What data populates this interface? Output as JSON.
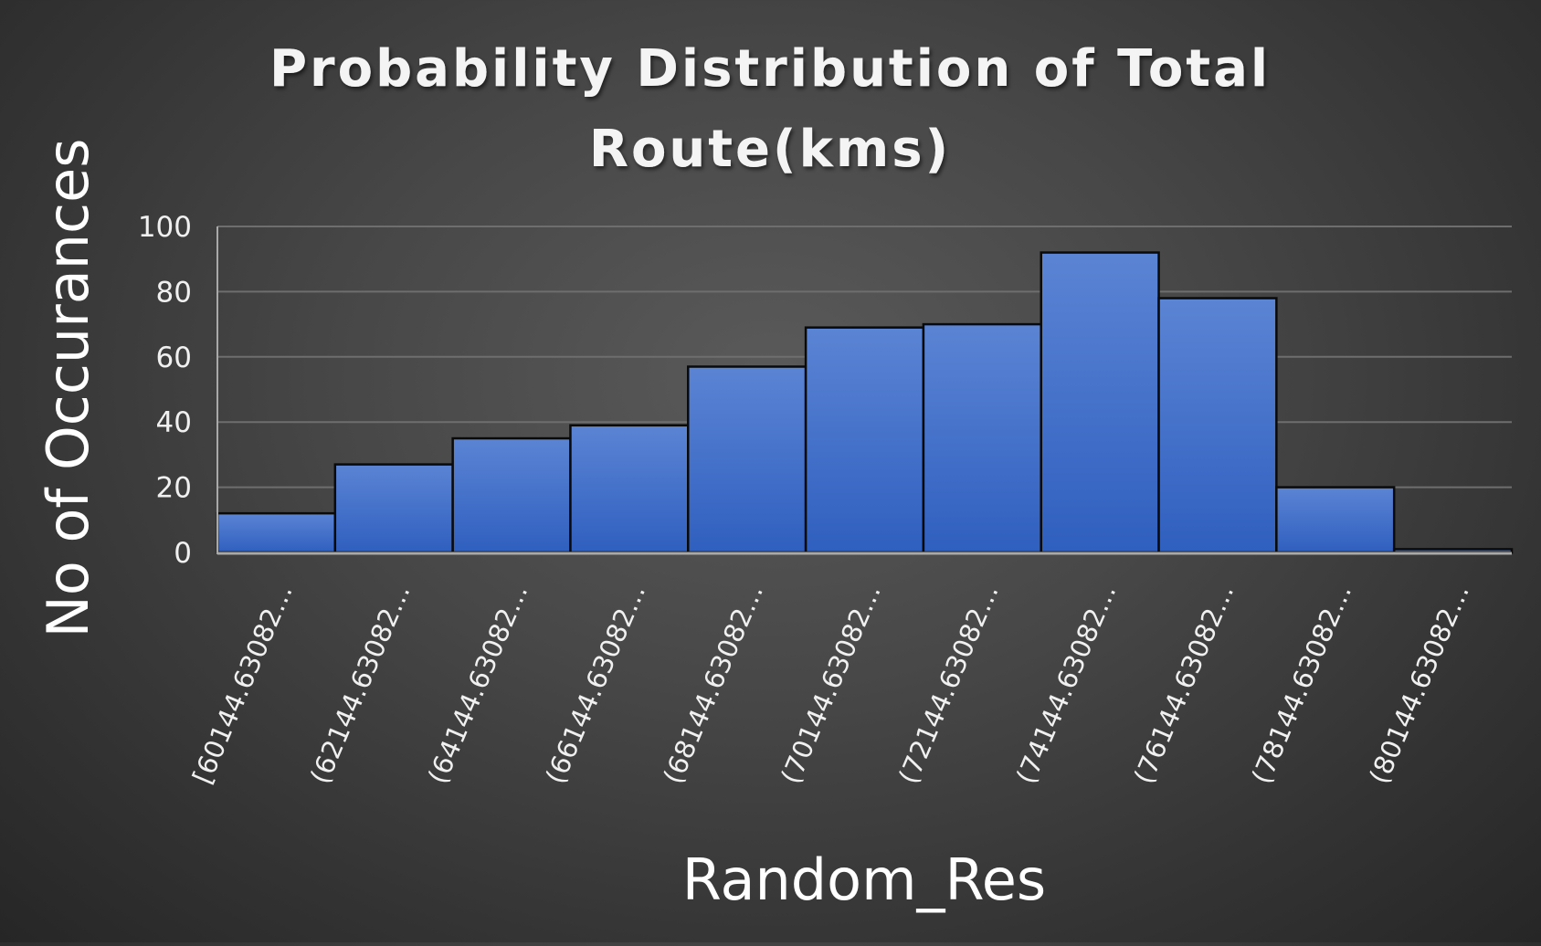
{
  "chart_data": {
    "type": "bar",
    "title": "Probability Distribution of Total Route(kms)",
    "title_lines": [
      "Probability Distribution of Total",
      "Route(kms)"
    ],
    "xlabel": "Random_Res",
    "ylabel": "No of Occurances",
    "categories": [
      "[60144.63082…",
      "(62144.63082…",
      "(64144.63082…",
      "(66144.63082…",
      "(68144.63082…",
      "(70144.63082…",
      "(72144.63082…",
      "(74144.63082…",
      "(76144.63082…",
      "(78144.63082…",
      "(80144.63082…"
    ],
    "values": [
      12,
      27,
      35,
      39,
      57,
      69,
      70,
      92,
      78,
      20,
      1
    ],
    "ylim": [
      0,
      100
    ],
    "yticks": [
      0,
      20,
      40,
      60,
      80,
      100
    ],
    "grid": true,
    "legend": "none",
    "colors": {
      "bar_top": "#5b84d4",
      "bar_bottom": "#2f5fbf",
      "bar_edge": "#0a0a0a",
      "grid": "#6e6e6e",
      "axis": "#a9a9a9"
    }
  }
}
